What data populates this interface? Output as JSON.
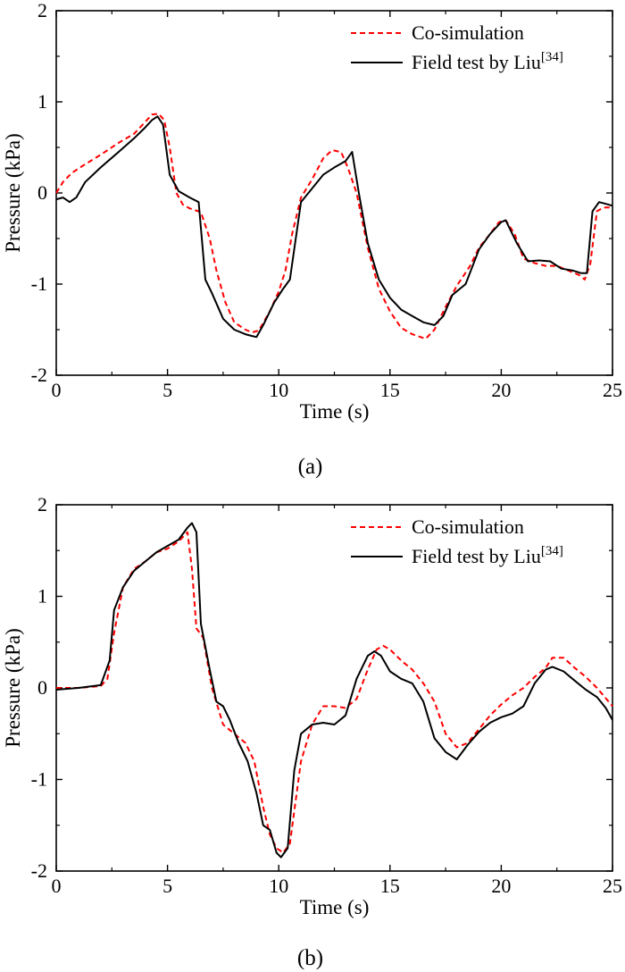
{
  "chart_data": [
    {
      "type": "line",
      "panel_label": "(a)",
      "xlabel": "Time (s)",
      "ylabel": "Pressure (kPa)",
      "xlim": [
        0,
        25
      ],
      "ylim": [
        -2,
        2
      ],
      "xticks": [
        0,
        5,
        10,
        15,
        20,
        25
      ],
      "yticks": [
        -2,
        -1,
        0,
        1,
        2
      ],
      "legend_position": "top-right",
      "series": [
        {
          "name": "Co-simulation",
          "legend_sup": "",
          "color": "#ff0000",
          "dash": "dashed",
          "x": [
            0,
            0.3,
            0.7,
            1.2,
            2,
            2.8,
            3.5,
            4,
            4.3,
            4.6,
            4.85,
            5.1,
            5.4,
            5.7,
            6,
            6.5,
            6.9,
            7.2,
            7.6,
            8,
            8.5,
            8.8,
            9.1,
            9.6,
            10,
            10.3,
            10.6,
            11,
            11.5,
            12,
            12.4,
            12.8,
            13.1,
            13.5,
            14,
            14.5,
            15,
            15.5,
            16,
            16.6,
            17,
            17.5,
            18,
            18.6,
            19,
            19.5,
            19.9,
            20.2,
            20.6,
            21,
            21.5,
            22,
            22.5,
            23,
            23.5,
            23.75,
            24,
            24.3,
            24.6,
            25
          ],
          "values": [
            0,
            0.12,
            0.22,
            0.3,
            0.42,
            0.55,
            0.65,
            0.78,
            0.86,
            0.87,
            0.8,
            0.5,
            0.0,
            -0.13,
            -0.17,
            -0.21,
            -0.5,
            -0.85,
            -1.2,
            -1.42,
            -1.5,
            -1.53,
            -1.51,
            -1.3,
            -1.08,
            -0.85,
            -0.45,
            -0.05,
            0.15,
            0.38,
            0.47,
            0.45,
            0.28,
            0.0,
            -0.6,
            -1.05,
            -1.3,
            -1.48,
            -1.55,
            -1.6,
            -1.5,
            -1.25,
            -1.02,
            -0.8,
            -0.6,
            -0.45,
            -0.32,
            -0.3,
            -0.45,
            -0.72,
            -0.77,
            -0.8,
            -0.8,
            -0.85,
            -0.9,
            -0.95,
            -0.78,
            -0.2,
            -0.16,
            -0.16
          ]
        },
        {
          "name": "Field test by Liu",
          "legend_sup": "[34]",
          "color": "#000000",
          "dash": "solid",
          "x": [
            0,
            0.3,
            0.6,
            0.9,
            1.3,
            2,
            2.8,
            3.5,
            4,
            4.3,
            4.55,
            4.8,
            5.1,
            5.5,
            6,
            6.4,
            6.7,
            7,
            7.5,
            8,
            8.5,
            8.8,
            9,
            9.3,
            9.8,
            10.2,
            10.5,
            11,
            11.5,
            12,
            12.5,
            13,
            13.3,
            13.6,
            14,
            14.5,
            15,
            15.5,
            16,
            16.5,
            17,
            17.4,
            17.8,
            18.4,
            19,
            19.5,
            20,
            20.2,
            20.7,
            21.2,
            21.7,
            22.2,
            22.7,
            23.2,
            23.6,
            23.85,
            24.1,
            24.4,
            24.7,
            25
          ],
          "values": [
            -0.07,
            -0.05,
            -0.1,
            -0.05,
            0.12,
            0.28,
            0.45,
            0.6,
            0.72,
            0.8,
            0.84,
            0.75,
            0.2,
            0.02,
            -0.05,
            -0.1,
            -0.95,
            -1.1,
            -1.38,
            -1.5,
            -1.55,
            -1.57,
            -1.58,
            -1.45,
            -1.2,
            -1.05,
            -0.95,
            -0.1,
            0.05,
            0.2,
            0.28,
            0.35,
            0.45,
            0.0,
            -0.55,
            -0.95,
            -1.15,
            -1.28,
            -1.35,
            -1.42,
            -1.45,
            -1.35,
            -1.12,
            -1.0,
            -0.62,
            -0.45,
            -0.32,
            -0.3,
            -0.55,
            -0.75,
            -0.74,
            -0.75,
            -0.83,
            -0.85,
            -0.88,
            -0.88,
            -0.2,
            -0.1,
            -0.12,
            -0.14
          ]
        }
      ]
    },
    {
      "type": "line",
      "panel_label": "(b)",
      "xlabel": "Time (s)",
      "ylabel": "Pressure (kPa)",
      "xlim": [
        0,
        25
      ],
      "ylim": [
        -2,
        2
      ],
      "xticks": [
        0,
        5,
        10,
        15,
        20,
        25
      ],
      "yticks": [
        -2,
        -1,
        0,
        1,
        2
      ],
      "legend_position": "top-right",
      "series": [
        {
          "name": "Co-simulation",
          "legend_sup": "",
          "color": "#ff0000",
          "dash": "dashed",
          "x": [
            0,
            1,
            2,
            2.3,
            2.6,
            3,
            3.5,
            4,
            4.5,
            5,
            5.5,
            5.9,
            6.1,
            6.3,
            6.6,
            7,
            7.5,
            8,
            8.5,
            8.9,
            9.3,
            9.6,
            9.9,
            10.2,
            10.5,
            11,
            11.5,
            12,
            12.5,
            13,
            13.5,
            14,
            14.4,
            14.7,
            15,
            15.5,
            16,
            16.5,
            17,
            17.5,
            18,
            18.5,
            19,
            19.5,
            20,
            20.5,
            21,
            21.5,
            22,
            22.3,
            22.8,
            23.3,
            23.8,
            24.3,
            25
          ],
          "values": [
            0,
            0,
            0.02,
            0.1,
            0.6,
            1.1,
            1.3,
            1.38,
            1.48,
            1.52,
            1.6,
            1.7,
            1.3,
            0.65,
            0.55,
            0.0,
            -0.4,
            -0.5,
            -0.6,
            -0.8,
            -1.3,
            -1.6,
            -1.75,
            -1.8,
            -1.7,
            -0.8,
            -0.4,
            -0.2,
            -0.2,
            -0.22,
            -0.12,
            0.2,
            0.42,
            0.46,
            0.42,
            0.3,
            0.2,
            0.05,
            -0.15,
            -0.5,
            -0.65,
            -0.6,
            -0.45,
            -0.3,
            -0.18,
            -0.08,
            0.0,
            0.12,
            0.22,
            0.33,
            0.33,
            0.22,
            0.12,
            0.0,
            -0.2
          ]
        },
        {
          "name": "Field test by Liu",
          "legend_sup": "[34]",
          "color": "#000000",
          "dash": "solid",
          "x": [
            0,
            1,
            2,
            2.4,
            2.6,
            3,
            3.5,
            4,
            4.5,
            5,
            5.5,
            5.9,
            6.1,
            6.3,
            6.5,
            6.9,
            7.2,
            7.5,
            7.8,
            8.2,
            8.6,
            9,
            9.3,
            9.6,
            9.9,
            10.1,
            10.4,
            10.7,
            11,
            11.5,
            12,
            12.5,
            13,
            13.5,
            14,
            14.3,
            14.6,
            15,
            15.5,
            16,
            16.5,
            17,
            17.5,
            18,
            18.5,
            19,
            19.5,
            20,
            20.5,
            21,
            21.5,
            22,
            22.3,
            22.8,
            23.3,
            23.8,
            24.3,
            24.7,
            25
          ],
          "values": [
            -0.02,
            0,
            0.03,
            0.3,
            0.85,
            1.1,
            1.28,
            1.38,
            1.48,
            1.55,
            1.62,
            1.75,
            1.8,
            1.7,
            0.7,
            0.2,
            -0.15,
            -0.2,
            -0.35,
            -0.6,
            -0.8,
            -1.15,
            -1.5,
            -1.55,
            -1.8,
            -1.85,
            -1.75,
            -0.9,
            -0.5,
            -0.4,
            -0.38,
            -0.4,
            -0.3,
            0.1,
            0.35,
            0.4,
            0.35,
            0.18,
            0.1,
            0.05,
            -0.15,
            -0.55,
            -0.7,
            -0.78,
            -0.62,
            -0.48,
            -0.38,
            -0.32,
            -0.28,
            -0.2,
            0.05,
            0.2,
            0.23,
            0.18,
            0.08,
            -0.02,
            -0.1,
            -0.22,
            -0.35
          ]
        }
      ]
    }
  ]
}
